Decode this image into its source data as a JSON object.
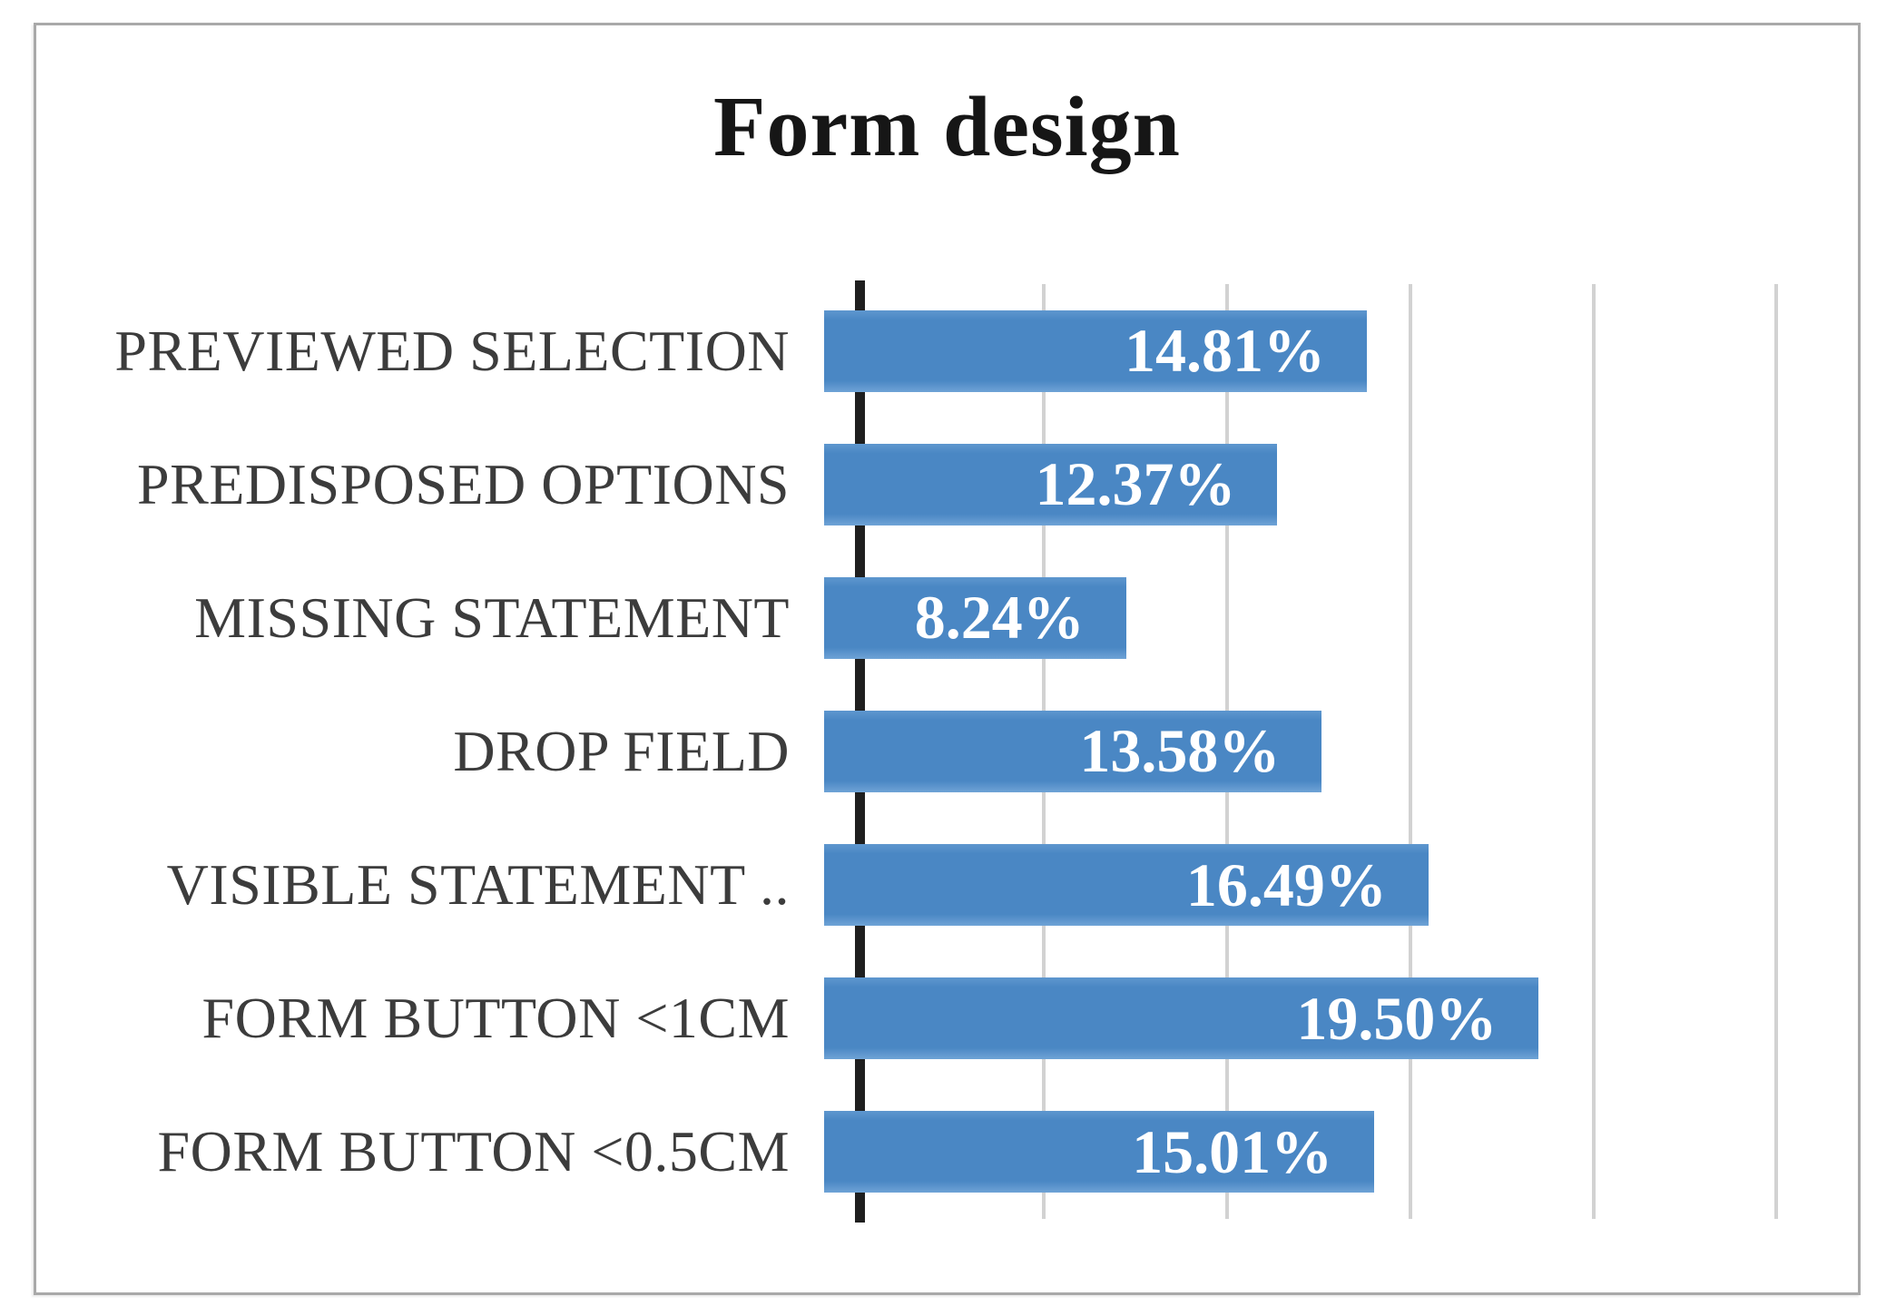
{
  "chart_data": {
    "type": "bar",
    "orientation": "horizontal",
    "title": "Form design",
    "categories": [
      "PREVIEWED SELECTION",
      "PREDISPOSED OPTIONS",
      "MISSING STATEMENT",
      "DROP FIELD",
      "VISIBLE STATEMENT ..",
      "FORM BUTTON <1CM",
      "FORM BUTTON <0.5CM"
    ],
    "values": [
      14.81,
      12.37,
      8.24,
      13.58,
      16.49,
      19.5,
      15.01
    ],
    "value_labels": [
      "14.81%",
      "12.37%",
      "8.24%",
      "13.58%",
      "16.49%",
      "19.50%",
      "15.01%"
    ],
    "xlabel": "",
    "ylabel": "",
    "xlim": [
      0,
      26.5
    ],
    "gridlines_pct": [
      5,
      10,
      15,
      20,
      25
    ],
    "grid": true,
    "legend": false,
    "data_label_position": "inside-end",
    "colors": {
      "bar": "#4a87c4",
      "value_label": "#ffffff",
      "category_label": "#3c3c3c",
      "title": "#161616",
      "axis": "#1f1f1f",
      "gridline": "#d2d2d2",
      "frame_border": "#a9a9a9",
      "background": "#ffffff"
    }
  }
}
